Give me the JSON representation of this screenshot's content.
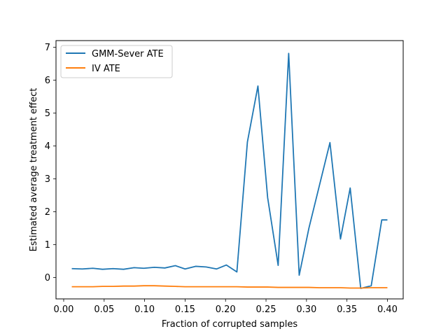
{
  "chart_data": {
    "type": "line",
    "xlabel": "Fraction of corrupted samples",
    "ylabel": "Estimated average treatment effect",
    "xlim": [
      -0.0095,
      0.4195
    ],
    "ylim": [
      -0.65,
      7.2
    ],
    "xticks": [
      0.0,
      0.05,
      0.1,
      0.15,
      0.2,
      0.25,
      0.3,
      0.35,
      0.4
    ],
    "xtick_labels": [
      "0.00",
      "0.05",
      "0.10",
      "0.15",
      "0.20",
      "0.25",
      "0.30",
      "0.35",
      "0.40"
    ],
    "yticks": [
      0,
      1,
      2,
      3,
      4,
      5,
      6,
      7
    ],
    "ytick_labels": [
      "0",
      "1",
      "2",
      "3",
      "4",
      "5",
      "6",
      "7"
    ],
    "grid": false,
    "legend_position": "top-left",
    "x": [
      0.01,
      0.023,
      0.036,
      0.048,
      0.061,
      0.074,
      0.087,
      0.099,
      0.112,
      0.125,
      0.138,
      0.15,
      0.163,
      0.176,
      0.189,
      0.201,
      0.214,
      0.227,
      0.24,
      0.252,
      0.265,
      0.278,
      0.291,
      0.303,
      0.316,
      0.329,
      0.342,
      0.354,
      0.367,
      0.38,
      0.393,
      0.4
    ],
    "series": [
      {
        "name": "GMM-Sever ATE",
        "color": "#1f77b4",
        "values": [
          0.27,
          0.26,
          0.28,
          0.25,
          0.27,
          0.25,
          0.3,
          0.28,
          0.31,
          0.29,
          0.36,
          0.26,
          0.34,
          0.32,
          0.26,
          0.38,
          0.17,
          4.12,
          5.82,
          2.43,
          0.37,
          6.81,
          0.07,
          1.5,
          2.8,
          4.1,
          1.17,
          2.72,
          -0.33,
          -0.25,
          1.75,
          1.75
        ]
      },
      {
        "name": "IV ATE",
        "color": "#ff7f0e",
        "values": [
          -0.28,
          -0.28,
          -0.28,
          -0.27,
          -0.27,
          -0.26,
          -0.26,
          -0.25,
          -0.25,
          -0.26,
          -0.27,
          -0.28,
          -0.28,
          -0.28,
          -0.28,
          -0.28,
          -0.28,
          -0.29,
          -0.29,
          -0.29,
          -0.3,
          -0.3,
          -0.3,
          -0.3,
          -0.31,
          -0.31,
          -0.31,
          -0.32,
          -0.32,
          -0.31,
          -0.31,
          -0.31
        ]
      }
    ]
  }
}
